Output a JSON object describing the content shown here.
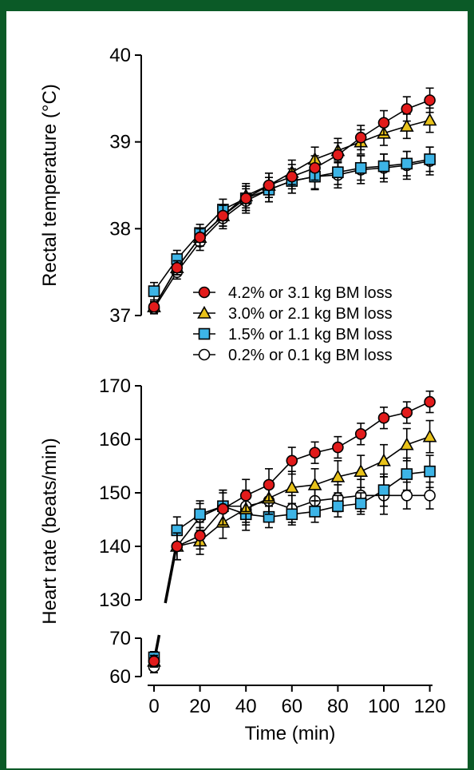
{
  "chart_data": {
    "type": "line",
    "x": [
      0,
      10,
      20,
      30,
      40,
      50,
      60,
      70,
      80,
      90,
      100,
      110,
      120
    ],
    "xlabel": "Time (min)",
    "xticks": [
      0,
      20,
      40,
      60,
      80,
      100,
      120
    ],
    "xtick_labels": [
      "0",
      "20",
      "40",
      "60",
      "80",
      "100",
      "120"
    ],
    "legend": {
      "placement": "bottom-right of top panel",
      "entries": [
        {
          "label": "4.2% or 3.1 kg BM loss",
          "marker": "circle",
          "color": "#e21b1b"
        },
        {
          "label": "3.0% or 2.1 kg BM loss",
          "marker": "triangle",
          "color": "#e8c21a"
        },
        {
          "label": "1.5% or 1.1 kg BM loss",
          "marker": "square",
          "color": "#3db4e6"
        },
        {
          "label": "0.2% or 0.1 kg BM loss",
          "marker": "circle",
          "color": "#ffffff"
        }
      ]
    },
    "panels": [
      {
        "ylabel": "Rectal temperature (°C)",
        "ylim": [
          37,
          40
        ],
        "yticks": [
          37,
          38,
          39,
          40
        ],
        "ytick_labels": [
          "37",
          "38",
          "39",
          "40"
        ],
        "series": [
          {
            "values": [
              37.1,
              37.55,
              37.9,
              38.15,
              38.35,
              38.5,
              38.6,
              38.7,
              38.85,
              39.05,
              39.22,
              39.38,
              39.48
            ],
            "err": [
              0.06,
              0.08,
              0.1,
              0.12,
              0.14,
              0.14,
              0.14,
              0.14,
              0.14,
              0.14,
              0.14,
              0.14,
              0.14
            ]
          },
          {
            "values": [
              37.1,
              37.55,
              37.9,
              38.15,
              38.38,
              38.5,
              38.65,
              38.8,
              38.9,
              39.0,
              39.1,
              39.18,
              39.25
            ],
            "err": [
              0.06,
              0.08,
              0.1,
              0.12,
              0.14,
              0.14,
              0.14,
              0.14,
              0.14,
              0.14,
              0.14,
              0.14,
              0.14
            ]
          },
          {
            "values": [
              37.28,
              37.65,
              37.95,
              38.22,
              38.35,
              38.45,
              38.55,
              38.6,
              38.65,
              38.7,
              38.72,
              38.75,
              38.8
            ],
            "err": [
              0.1,
              0.1,
              0.1,
              0.12,
              0.14,
              0.14,
              0.14,
              0.14,
              0.14,
              0.14,
              0.14,
              0.14,
              0.14
            ]
          },
          {
            "values": [
              37.08,
              37.5,
              37.85,
              38.12,
              38.32,
              38.45,
              38.55,
              38.6,
              38.62,
              38.68,
              38.7,
              38.73,
              38.78
            ],
            "err": [
              0.06,
              0.08,
              0.1,
              0.12,
              0.14,
              0.14,
              0.14,
              0.15,
              0.15,
              0.16,
              0.16,
              0.16,
              0.16
            ]
          }
        ]
      },
      {
        "ylabel": "Heart rate (beats/min)",
        "ylim_upper": [
          130,
          170
        ],
        "ylim_lower": [
          60,
          70
        ],
        "yticks_upper": [
          130,
          140,
          150,
          160,
          170
        ],
        "yticks_lower": [
          60,
          70
        ],
        "ytick_labels": [
          "60",
          "70",
          "130",
          "140",
          "150",
          "160",
          "170"
        ],
        "series": [
          {
            "values": [
              64,
              140,
              142,
              147,
              149.5,
              151.5,
              156,
              157.5,
              158.5,
              161,
              164,
              165,
              167
            ],
            "err": [
              1.5,
              2.5,
              2.5,
              3,
              3,
              3,
              2.5,
              2,
              2,
              2,
              2,
              2,
              2
            ]
          },
          {
            "values": [
              64,
              140,
              141,
              144.5,
              147,
              149,
              151,
              151.5,
              153,
              154,
              156,
              159,
              160.5
            ],
            "err": [
              1.5,
              2.5,
              2.5,
              3,
              3,
              3,
              3,
              3,
              3,
              3,
              3,
              3,
              3
            ]
          },
          {
            "values": [
              65,
              143,
              146,
              147.5,
              146,
              145.5,
              146,
              146.5,
              147.5,
              148,
              150.5,
              153.5,
              154
            ],
            "err": [
              1.5,
              2.5,
              2.5,
              3,
              3,
              2,
              2,
              2,
              2,
              2,
              3,
              3,
              3
            ]
          },
          {
            "values": [
              62.5,
              140,
              145.5,
              147.5,
              147.5,
              148.5,
              147,
              148.5,
              149,
              149.5,
              149.5,
              149.5,
              149.5
            ],
            "err": [
              1.5,
              2.5,
              2.5,
              3,
              3,
              2.5,
              2.5,
              2.5,
              2.5,
              3,
              3.5,
              2.5,
              2.5
            ]
          }
        ]
      }
    ]
  }
}
